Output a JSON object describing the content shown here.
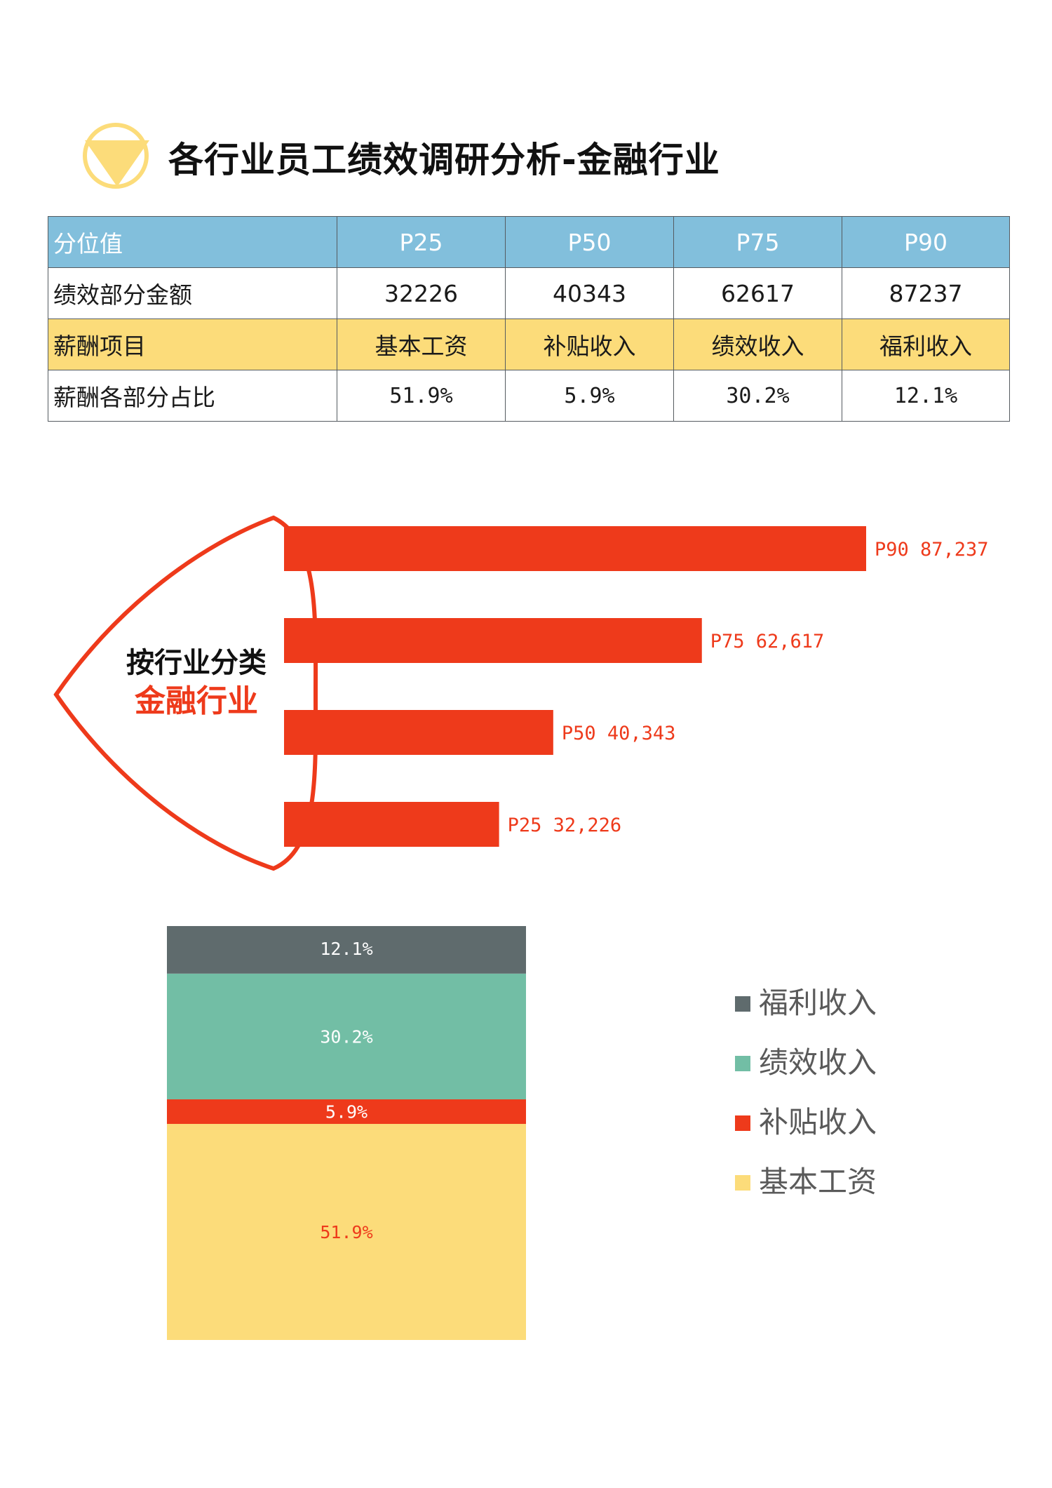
{
  "title": "各行业员工绩效调研分析-金融行业",
  "colors": {
    "header_blue": "#82bfdc",
    "item_yellow": "#fcdc7a",
    "accent_red": "#ee3a1b",
    "welfare": "#5f6b6d",
    "performance": "#72bea5",
    "subsidy": "#ee3a1b",
    "base": "#fcdc7a",
    "icon_yellow": "#fcdc7a"
  },
  "table": {
    "header": [
      "分位值",
      "P25",
      "P50",
      "P75",
      "P90"
    ],
    "amount_row": [
      "绩效部分金额",
      "32226",
      "40343",
      "62617",
      "87237"
    ],
    "items_row": [
      "薪酬项目",
      "基本工资",
      "补贴收入",
      "绩效收入",
      "福利收入"
    ],
    "ratio_row": [
      "薪酬各部分占比",
      "51.9%",
      "5.9%",
      "30.2%",
      "12.1%"
    ]
  },
  "shield": {
    "line1": "按行业分类",
    "line2": "金融行业"
  },
  "chart_data": [
    {
      "type": "bar",
      "orientation": "horizontal",
      "categories": [
        "P25",
        "P50",
        "P75",
        "P90"
      ],
      "values": [
        32226,
        40343,
        62617,
        87237
      ],
      "data_labels": [
        "P25 32,226",
        "P50 40,343",
        "P75 62,617",
        "P90 87,237"
      ],
      "color": "#ee3a1b"
    },
    {
      "type": "bar",
      "stacked": true,
      "series": [
        {
          "name": "基本工资",
          "values": [
            51.9
          ],
          "label": "51.9%",
          "color": "#fcdc7a"
        },
        {
          "name": "补贴收入",
          "values": [
            5.9
          ],
          "label": "5.9%",
          "color": "#ee3a1b"
        },
        {
          "name": "绩效收入",
          "values": [
            30.2
          ],
          "label": "30.2%",
          "color": "#72bea5"
        },
        {
          "name": "福利收入",
          "values": [
            12.1
          ],
          "label": "12.1%",
          "color": "#5f6b6d"
        }
      ],
      "legend": [
        "福利收入",
        "绩效收入",
        "补贴收入",
        "基本工资"
      ],
      "legend_position": "right"
    }
  ]
}
